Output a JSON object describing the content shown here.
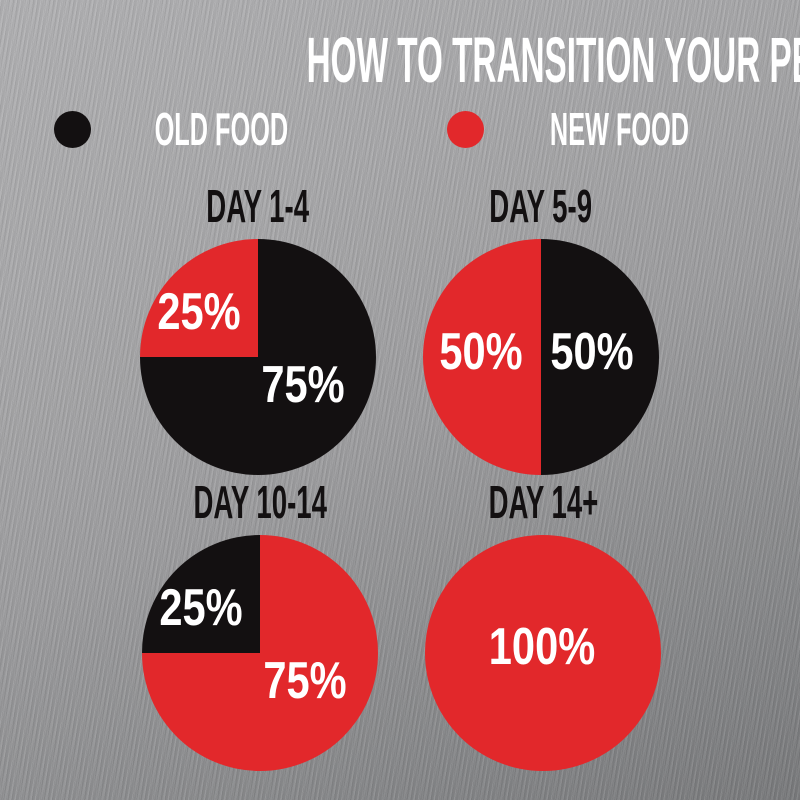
{
  "page": {
    "title": "HOW TO TRANSITION YOUR PET’S FOOD"
  },
  "colors": {
    "old": "#131011",
    "new": "#E2282B",
    "title_text": "#FFFFFF",
    "heading_text": "#131011",
    "percent_label_text": "#FFFFFF"
  },
  "legend": {
    "items": [
      {
        "label": "OLD FOOD",
        "color_key": "old"
      },
      {
        "label": "NEW FOOD",
        "color_key": "new"
      }
    ]
  },
  "chart_data": [
    {
      "type": "pie",
      "title": "DAY 1-4",
      "legend_position": "top",
      "slices": [
        {
          "name": "old-food",
          "label": "OLD FOOD",
          "value": 75,
          "display": "75%",
          "color_key": "old"
        },
        {
          "name": "new-food",
          "label": "NEW FOOD",
          "value": 25,
          "display": "25%",
          "color_key": "new"
        }
      ]
    },
    {
      "type": "pie",
      "title": "DAY 5-9",
      "legend_position": "top",
      "slices": [
        {
          "name": "old-food",
          "label": "OLD FOOD",
          "value": 50,
          "display": "50%",
          "color_key": "old"
        },
        {
          "name": "new-food",
          "label": "NEW FOOD",
          "value": 50,
          "display": "50%",
          "color_key": "new"
        }
      ]
    },
    {
      "type": "pie",
      "title": "DAY 10-14",
      "legend_position": "top",
      "slices": [
        {
          "name": "new-food",
          "label": "NEW FOOD",
          "value": 75,
          "display": "75%",
          "color_key": "new"
        },
        {
          "name": "old-food",
          "label": "OLD FOOD",
          "value": 25,
          "display": "25%",
          "color_key": "old"
        }
      ]
    },
    {
      "type": "pie",
      "title": "DAY 14+",
      "legend_position": "top",
      "slices": [
        {
          "name": "new-food",
          "label": "NEW FOOD",
          "value": 100,
          "display": "100%",
          "color_key": "new"
        }
      ]
    }
  ]
}
